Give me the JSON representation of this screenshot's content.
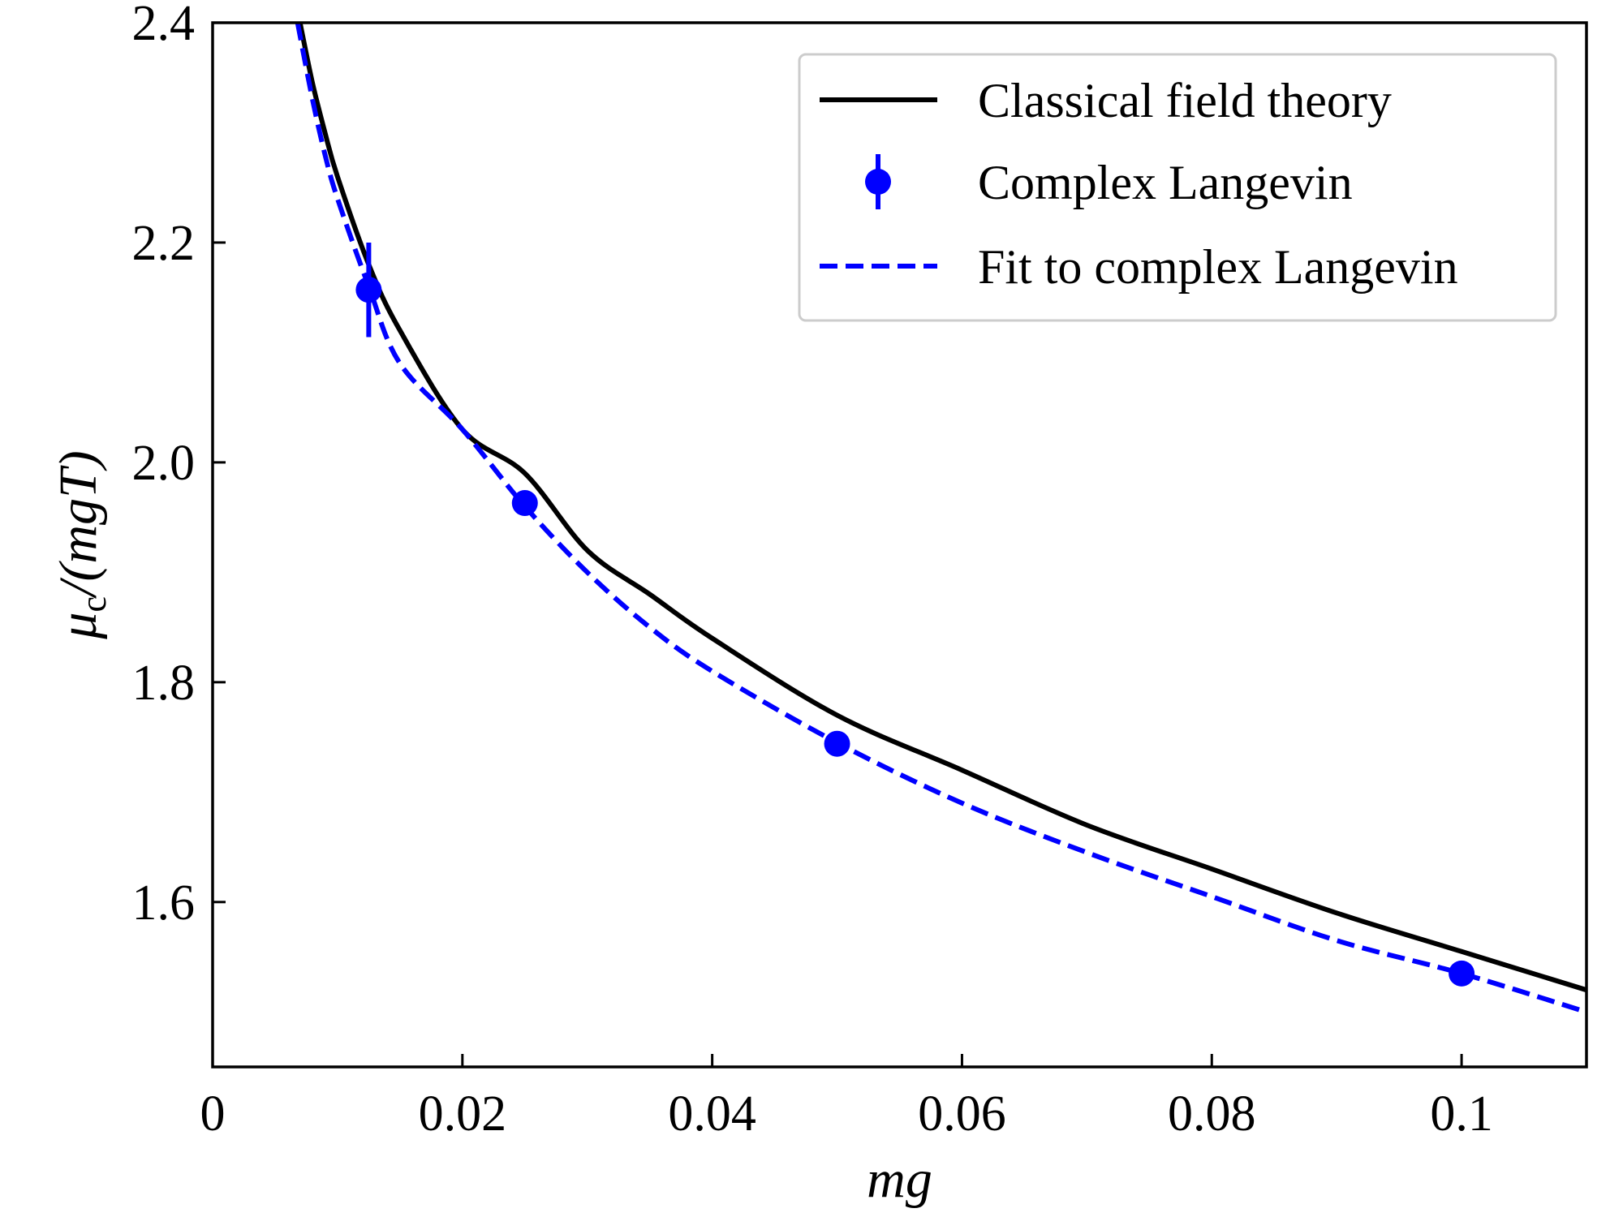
{
  "chart_data": {
    "type": "line",
    "title": "",
    "xlabel": "mg",
    "ylabel_main": "μ",
    "ylabel_sub": "c",
    "ylabel_tail": "/(mgT)",
    "xlim": [
      0,
      0.11
    ],
    "ylim": [
      1.45,
      2.4
    ],
    "x_ticks": [
      0,
      0.02,
      0.04,
      0.06,
      0.08,
      0.1
    ],
    "x_tick_labels": [
      "0",
      "0.02",
      "0.04",
      "0.06",
      "0.08",
      "0.1"
    ],
    "y_ticks": [
      1.6,
      1.8,
      2.0,
      2.2,
      2.4
    ],
    "y_tick_labels": [
      "1.6",
      "1.8",
      "2.0",
      "2.2",
      "2.4"
    ],
    "grid": false,
    "legend_position": "top-right",
    "series": [
      {
        "name": "Classical field theory",
        "style": "solid",
        "color": "#000000",
        "x": [
          0.007,
          0.008,
          0.009,
          0.01,
          0.0125,
          0.015,
          0.02,
          0.025,
          0.03,
          0.035,
          0.04,
          0.05,
          0.06,
          0.07,
          0.08,
          0.09,
          0.1,
          0.11
        ],
        "y": [
          2.4,
          2.345,
          2.3,
          2.26,
          2.18,
          2.12,
          2.03,
          1.99,
          1.92,
          1.88,
          1.84,
          1.77,
          1.72,
          1.67,
          1.63,
          1.59,
          1.555,
          1.52
        ]
      },
      {
        "name": "Complex Langevin",
        "style": "markers",
        "color": "#0000ff",
        "x": [
          0.0125,
          0.025,
          0.05,
          0.1
        ],
        "y": [
          2.157,
          1.963,
          1.744,
          1.535
        ],
        "yerr": [
          0.043,
          0.008,
          0.006,
          0.005
        ]
      },
      {
        "name": "Fit to complex Langevin",
        "style": "dashed",
        "color": "#0000ff",
        "x": [
          0.0068,
          0.008,
          0.009,
          0.01,
          0.0125,
          0.015,
          0.02,
          0.025,
          0.03,
          0.035,
          0.04,
          0.05,
          0.06,
          0.07,
          0.08,
          0.09,
          0.1,
          0.11
        ],
        "y": [
          2.4,
          2.33,
          2.28,
          2.24,
          2.16,
          2.09,
          2.03,
          1.96,
          1.9,
          1.85,
          1.81,
          1.745,
          1.69,
          1.645,
          1.605,
          1.565,
          1.535,
          1.5
        ]
      }
    ]
  }
}
